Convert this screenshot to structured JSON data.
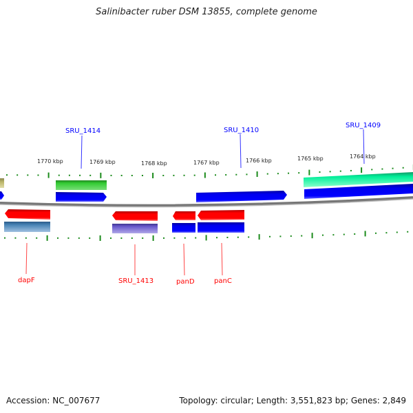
{
  "title": "Salinibacter ruber DSM 13855, complete genome",
  "footer": {
    "accession": "Accession: NC_007677",
    "summary": "Topology: circular; Length: 3,551,823 bp; Genes: 2,849"
  },
  "kbp_labels": [
    "1770 kbp",
    "1769 kbp",
    "1768 kbp",
    "1767 kbp",
    "1766 kbp",
    "1765 kbp",
    "1764 kbp"
  ],
  "top_genes": [
    "SRU_1414",
    "SRU_1410",
    "SRU_1409"
  ],
  "bottom_genes": [
    "dapF",
    "SRU_1413",
    "panD",
    "panC"
  ],
  "colors": {
    "forward_label": "#0000ff",
    "reverse_label": "#ff0000",
    "tick": "#1a8a1a",
    "backbone": "#808080"
  }
}
